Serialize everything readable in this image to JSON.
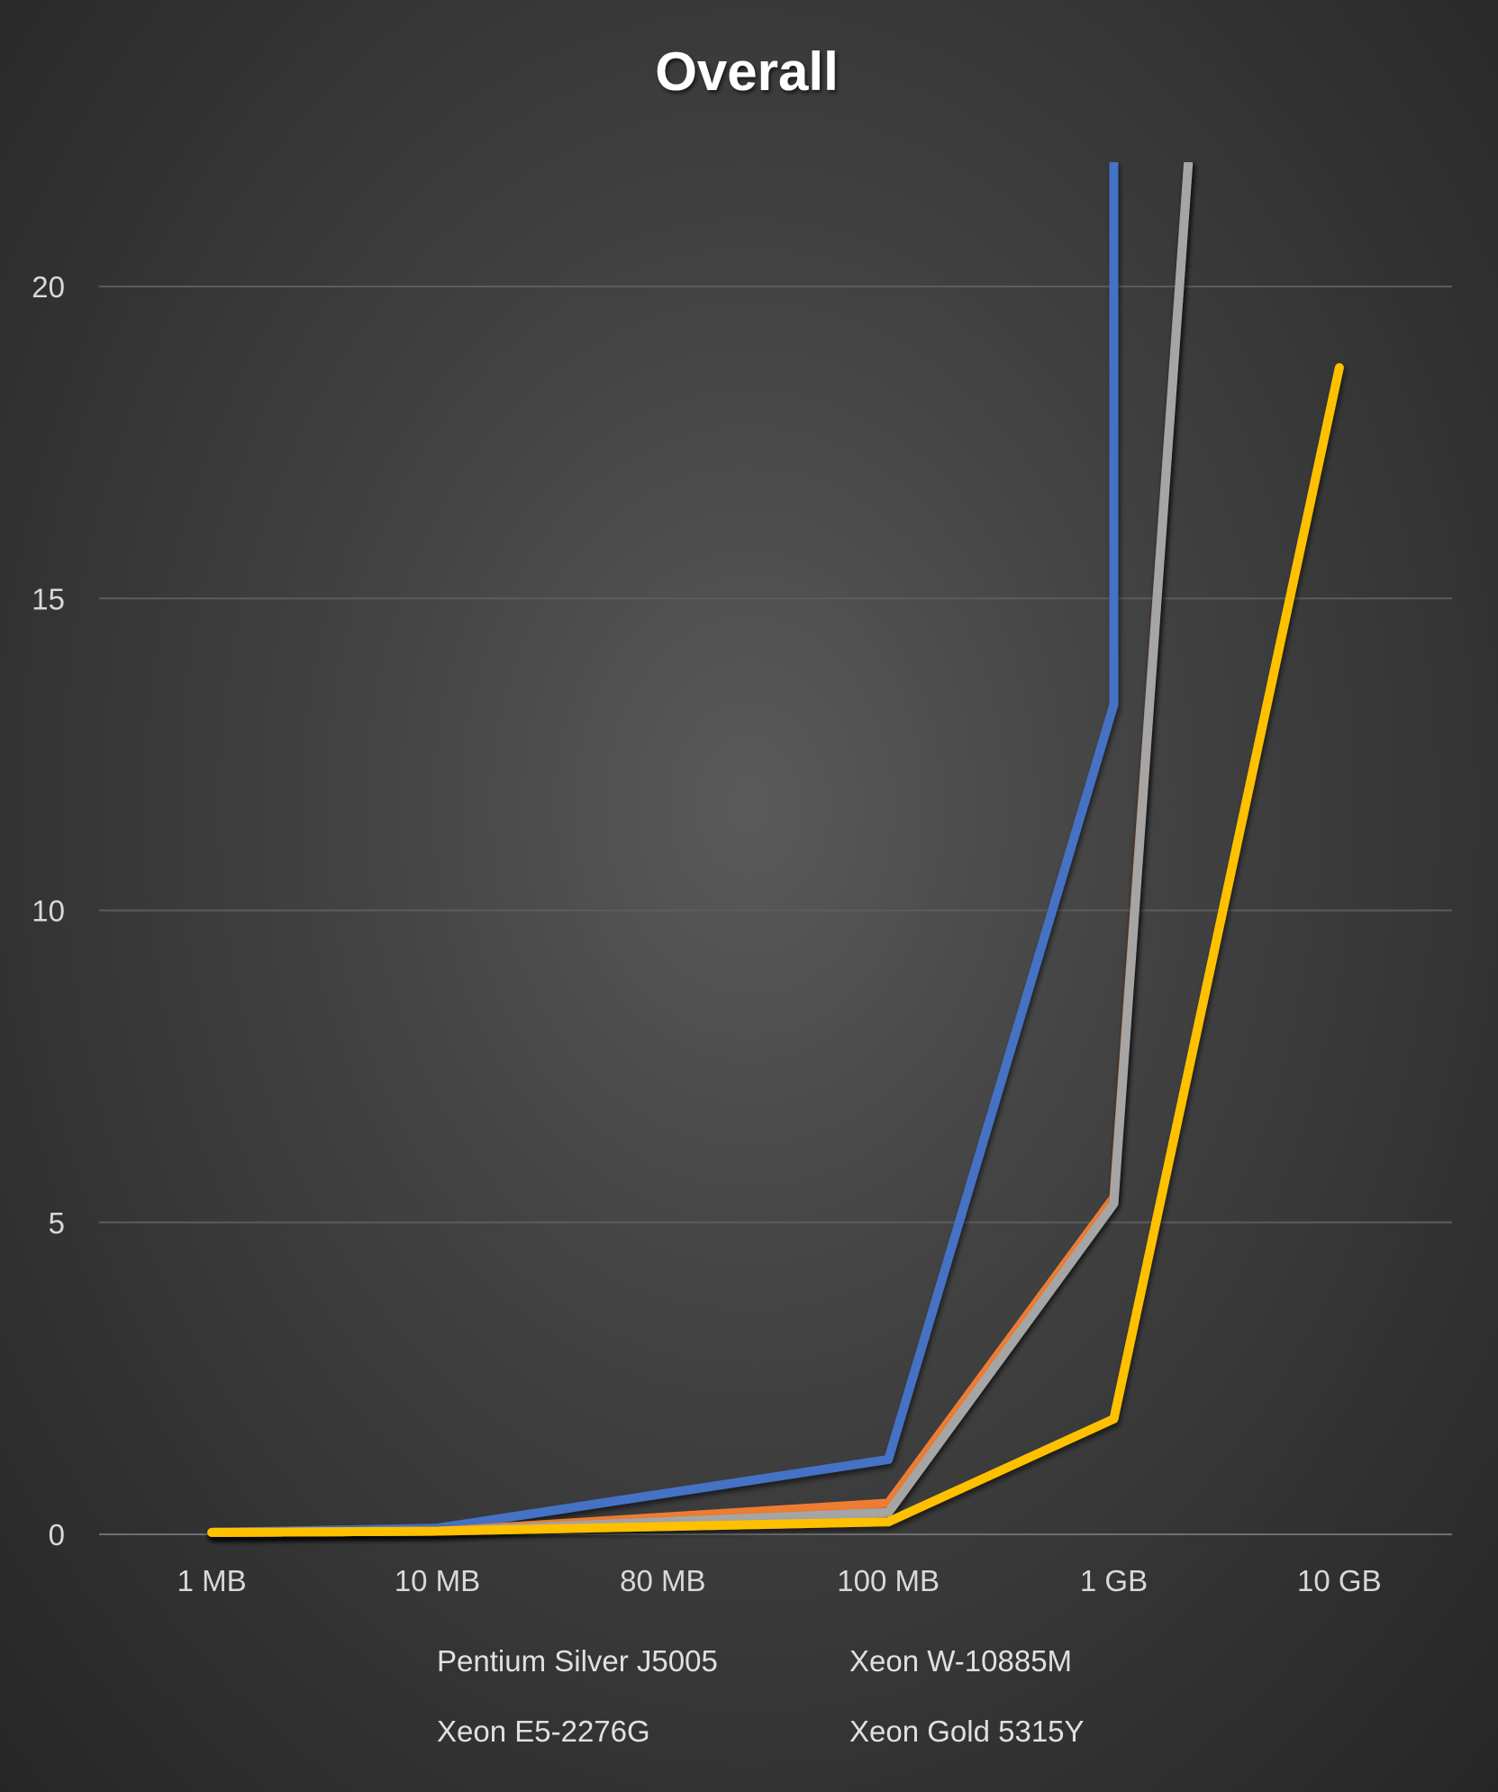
{
  "chart_data": {
    "type": "line",
    "title": "Overall",
    "xlabel": "",
    "ylabel": "",
    "categories": [
      "1 MB",
      "10 MB",
      "80 MB",
      "100 MB",
      "1 GB",
      "10 GB"
    ],
    "ylim": [
      0,
      22
    ],
    "yticks": [
      0,
      5,
      10,
      15,
      20
    ],
    "grid": true,
    "legend_position": "bottom",
    "series": [
      {
        "name": "Pentium Silver J5005",
        "color": "#4472C4",
        "values": [
          0.03,
          0.1,
          null,
          1.2,
          13.3,
          null
        ],
        "exceeds_top_at": "1 GB"
      },
      {
        "name": "Xeon W-10885M",
        "color": "#ED7D31",
        "values": [
          0.03,
          0.05,
          null,
          0.5,
          5.4,
          null
        ],
        "exceeds_top_between": [
          "1 GB",
          "10 GB"
        ]
      },
      {
        "name": "Xeon E5-2276G",
        "color": "#A5A5A5",
        "values": [
          0.03,
          0.05,
          null,
          0.35,
          5.3,
          null
        ],
        "exceeds_top_between": [
          "1 GB",
          "10 GB"
        ]
      },
      {
        "name": "Xeon Gold 5315Y",
        "color": "#FFC000",
        "values": [
          0.03,
          0.05,
          null,
          0.2,
          1.85,
          18.7
        ]
      }
    ]
  }
}
